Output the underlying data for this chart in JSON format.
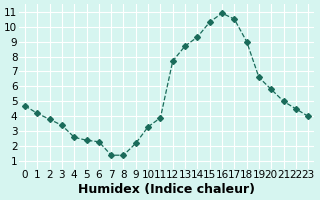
{
  "x": [
    0,
    1,
    2,
    3,
    4,
    5,
    6,
    7,
    8,
    9,
    10,
    11,
    12,
    13,
    14,
    15,
    16,
    17,
    18,
    19,
    20,
    21,
    22,
    23
  ],
  "y": [
    4.7,
    4.2,
    3.8,
    3.4,
    2.6,
    2.4,
    2.3,
    1.4,
    1.4,
    2.2,
    3.3,
    3.9,
    7.7,
    8.7,
    9.3,
    10.3,
    10.9,
    10.5,
    9.0,
    6.6,
    5.8,
    5.0,
    4.5,
    4.0
  ],
  "xlabel": "Humidex (Indice chaleur)",
  "xlim": [
    -0.5,
    23.5
  ],
  "ylim": [
    0.5,
    11.5
  ],
  "xtick_labels": [
    "0",
    "1",
    "2",
    "3",
    "4",
    "5",
    "6",
    "7",
    "8",
    "9",
    "10",
    "11",
    "12",
    "13",
    "14",
    "15",
    "16",
    "17",
    "18",
    "19",
    "20",
    "21",
    "22",
    "23"
  ],
  "ytick_labels": [
    "1",
    "2",
    "3",
    "4",
    "5",
    "6",
    "7",
    "8",
    "9",
    "10",
    "11"
  ],
  "ytick_values": [
    1,
    2,
    3,
    4,
    5,
    6,
    7,
    8,
    9,
    10,
    11
  ],
  "line_color": "#1a6b5a",
  "marker": "D",
  "marker_size": 3,
  "line_width": 0.9,
  "bg_color": "#d6f5f0",
  "grid_color": "#ffffff",
  "xlabel_fontsize": 9,
  "tick_fontsize": 7.5
}
